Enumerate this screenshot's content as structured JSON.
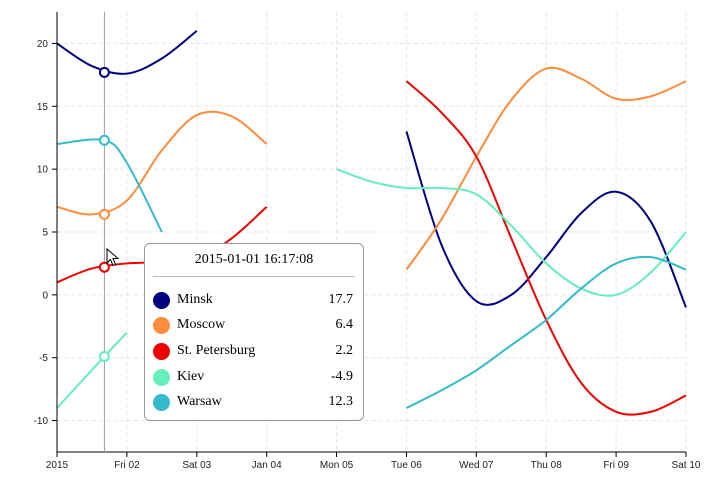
{
  "chart_data": {
    "type": "line",
    "x_ticks": [
      "2015",
      "Fri 02",
      "Sat 03",
      "Jan 04",
      "Mon 05",
      "Tue 06",
      "Wed 07",
      "Thu 08",
      "Fri 09",
      "Sat 10"
    ],
    "y_ticks": [
      20,
      15,
      10,
      5,
      0,
      -5,
      -10
    ],
    "xlim": [
      "2015-01-01 00:00",
      "2015-01-10 00:00"
    ],
    "ylim": [
      -12.5,
      22.5
    ],
    "grid": true,
    "hover_time": "2015-01-01 16:17",
    "series": [
      {
        "name": "Minsk",
        "color": "#000080",
        "segments": [
          [
            [
              "2015-01-01 00:00",
              20
            ],
            [
              "2015-01-01 12:00",
              18.2
            ],
            [
              "2015-01-02 00:00",
              17.6
            ],
            [
              "2015-01-02 12:00",
              18.8
            ],
            [
              "2015-01-03 00:00",
              21
            ]
          ],
          [
            [
              "2015-01-06 00:00",
              13
            ],
            [
              "2015-01-06 12:00",
              4
            ],
            [
              "2015-01-07 00:00",
              -0.5
            ],
            [
              "2015-01-07 12:00",
              0
            ],
            [
              "2015-01-08 00:00",
              3
            ],
            [
              "2015-01-08 12:00",
              6.5
            ],
            [
              "2015-01-09 00:00",
              8.2
            ],
            [
              "2015-01-09 12:00",
              5.8
            ],
            [
              "2015-01-10 00:00",
              -1
            ]
          ]
        ]
      },
      {
        "name": "Moscow",
        "color": "#ff8c3c",
        "segments": [
          [
            [
              "2015-01-01 00:00",
              7
            ],
            [
              "2015-01-01 12:00",
              6.4
            ],
            [
              "2015-01-02 00:00",
              7.5
            ],
            [
              "2015-01-02 12:00",
              11.5
            ],
            [
              "2015-01-03 00:00",
              14.3
            ],
            [
              "2015-01-03 12:00",
              14.2
            ],
            [
              "2015-01-04 00:00",
              12
            ]
          ],
          [
            [
              "2015-01-06 00:00",
              2
            ],
            [
              "2015-01-06 12:00",
              6
            ],
            [
              "2015-01-07 00:00",
              11
            ],
            [
              "2015-01-07 12:00",
              15.5
            ],
            [
              "2015-01-08 00:00",
              18
            ],
            [
              "2015-01-08 12:00",
              17.2
            ],
            [
              "2015-01-09 00:00",
              15.6
            ],
            [
              "2015-01-09 12:00",
              15.8
            ],
            [
              "2015-01-10 00:00",
              17
            ]
          ]
        ]
      },
      {
        "name": "St. Petersburg",
        "color": "#ee0000",
        "segments": [
          [
            [
              "2015-01-01 00:00",
              1
            ],
            [
              "2015-01-01 12:00",
              2.1
            ],
            [
              "2015-01-02 00:00",
              2.5
            ],
            [
              "2015-01-02 12:00",
              2.6
            ],
            [
              "2015-01-03 00:00",
              2.8
            ],
            [
              "2015-01-03 12:00",
              4.5
            ],
            [
              "2015-01-04 00:00",
              7
            ]
          ],
          [
            [
              "2015-01-06 00:00",
              17
            ],
            [
              "2015-01-06 12:00",
              14.5
            ],
            [
              "2015-01-07 00:00",
              11
            ],
            [
              "2015-01-07 12:00",
              4.5
            ],
            [
              "2015-01-08 00:00",
              -2
            ],
            [
              "2015-01-08 12:00",
              -7
            ],
            [
              "2015-01-09 00:00",
              -9.3
            ],
            [
              "2015-01-09 12:00",
              -9.3
            ],
            [
              "2015-01-10 00:00",
              -8
            ]
          ]
        ]
      },
      {
        "name": "Kiev",
        "color": "#66eebb",
        "segments": [
          [
            [
              "2015-01-01 00:00",
              -9
            ],
            [
              "2015-01-01 16:17",
              -4.9
            ],
            [
              "2015-01-02 00:00",
              -3
            ]
          ],
          [
            [
              "2015-01-05 00:00",
              10
            ],
            [
              "2015-01-05 12:00",
              9
            ],
            [
              "2015-01-06 00:00",
              8.5
            ],
            [
              "2015-01-06 12:00",
              8.5
            ],
            [
              "2015-01-07 00:00",
              8
            ],
            [
              "2015-01-07 12:00",
              5.5
            ],
            [
              "2015-01-08 00:00",
              2.5
            ],
            [
              "2015-01-08 12:00",
              0.5
            ],
            [
              "2015-01-09 00:00",
              0
            ],
            [
              "2015-01-09 12:00",
              1.8
            ],
            [
              "2015-01-10 00:00",
              5
            ]
          ]
        ]
      },
      {
        "name": "Warsaw",
        "color": "#33bbcc",
        "segments": [
          [
            [
              "2015-01-01 00:00",
              12
            ],
            [
              "2015-01-01 16:17",
              12.3
            ],
            [
              "2015-01-02 00:00",
              10.5
            ],
            [
              "2015-01-02 12:00",
              5
            ]
          ],
          [
            [
              "2015-01-06 00:00",
              -9
            ],
            [
              "2015-01-06 12:00",
              -7.6
            ],
            [
              "2015-01-07 00:00",
              -6
            ],
            [
              "2015-01-07 12:00",
              -4
            ],
            [
              "2015-01-08 00:00",
              -2
            ],
            [
              "2015-01-08 12:00",
              0.5
            ],
            [
              "2015-01-09 00:00",
              2.5
            ],
            [
              "2015-01-09 12:00",
              3
            ],
            [
              "2015-01-10 00:00",
              2
            ]
          ]
        ]
      }
    ]
  },
  "tooltip": {
    "title": "2015-01-01 16:17:08",
    "rows": [
      {
        "name": "Minsk",
        "value": "17.7",
        "color": "#000080"
      },
      {
        "name": "Moscow",
        "value": "6.4",
        "color": "#ff8c3c"
      },
      {
        "name": "St. Petersburg",
        "value": "2.2",
        "color": "#ee0000"
      },
      {
        "name": "Kiev",
        "value": "-4.9",
        "color": "#66eebb"
      },
      {
        "name": "Warsaw",
        "value": "12.3",
        "color": "#33bbcc"
      }
    ]
  }
}
